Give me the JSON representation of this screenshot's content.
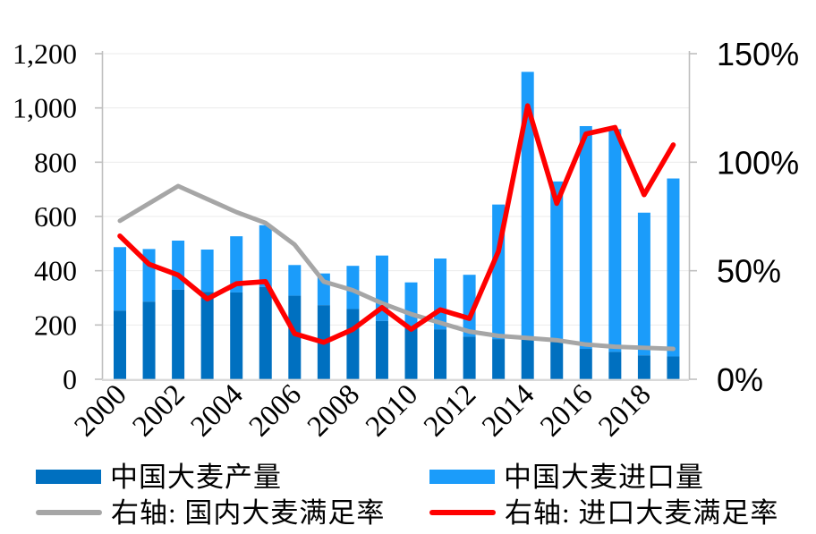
{
  "chart_data": {
    "type": "bar",
    "subtype": "stacked-bars-with-lines",
    "title": "",
    "categories": [
      "2000",
      "2001",
      "2002",
      "2003",
      "2004",
      "2005",
      "2006",
      "2007",
      "2008",
      "2009",
      "2010",
      "2011",
      "2012",
      "2013",
      "2014",
      "2015",
      "2016",
      "2017",
      "2018",
      "2019"
    ],
    "x_tick_labels": [
      "2000",
      "2002",
      "2004",
      "2006",
      "2008",
      "2010",
      "2012",
      "2014",
      "2016",
      "2018"
    ],
    "x_label_step": 2,
    "stacked": true,
    "grid": true,
    "legend_position": "bottom",
    "bar_series": [
      {
        "name": "中国大麦产量",
        "color": "#0070C0",
        "axis": "left",
        "values": [
          253,
          286,
          330,
          322,
          320,
          340,
          308,
          273,
          259,
          215,
          190,
          184,
          157,
          148,
          147,
          140,
          112,
          101,
          88,
          84
        ]
      },
      {
        "name": "中国大麦进口量",
        "color": "#1B9CFA",
        "axis": "left",
        "values": [
          234,
          194,
          181,
          156,
          207,
          228,
          113,
          117,
          159,
          241,
          167,
          261,
          228,
          496,
          986,
          589,
          821,
          821,
          526,
          656
        ]
      }
    ],
    "line_series": [
      {
        "name": "右轴: 国内大麦满足率",
        "color": "#A6A6A6",
        "axis": "right",
        "values_percent": [
          73,
          81,
          89,
          83,
          77,
          72,
          62,
          45,
          41,
          35,
          30,
          26,
          22,
          20,
          19,
          18,
          16,
          15,
          14.5,
          14
        ]
      },
      {
        "name": "右轴: 进口大麦满足率",
        "color": "#FF0000",
        "axis": "right",
        "values_percent": [
          66,
          53,
          48,
          37,
          44,
          45,
          21,
          17,
          23,
          33,
          23,
          32,
          28,
          59,
          126,
          81,
          113,
          116,
          85,
          108
        ]
      }
    ],
    "left_axis": {
      "min": 0,
      "max": 1200,
      "ticks": [
        {
          "value": 0,
          "label": "0"
        },
        {
          "value": 200,
          "label": "200"
        },
        {
          "value": 400,
          "label": "400"
        },
        {
          "value": 600,
          "label": "600"
        },
        {
          "value": 800,
          "label": "800"
        },
        {
          "value": 1000,
          "label": "1,000"
        },
        {
          "value": 1200,
          "label": "1,200"
        }
      ]
    },
    "right_axis": {
      "min": 0,
      "max": 150,
      "ticks": [
        {
          "value": 0,
          "label": "0%"
        },
        {
          "value": 50,
          "label": "50%"
        },
        {
          "value": 100,
          "label": "100%"
        },
        {
          "value": 150,
          "label": "150%"
        }
      ]
    },
    "colors": {
      "production_bar": "#0070C0",
      "import_bar": "#1B9CFA",
      "domestic_rate_line": "#A6A6A6",
      "import_rate_line": "#FF0000",
      "axis_line": "#BFBFBF",
      "baseline": "#D9D9D9",
      "gridline": "#EBEBEB",
      "text": "#000000"
    }
  }
}
